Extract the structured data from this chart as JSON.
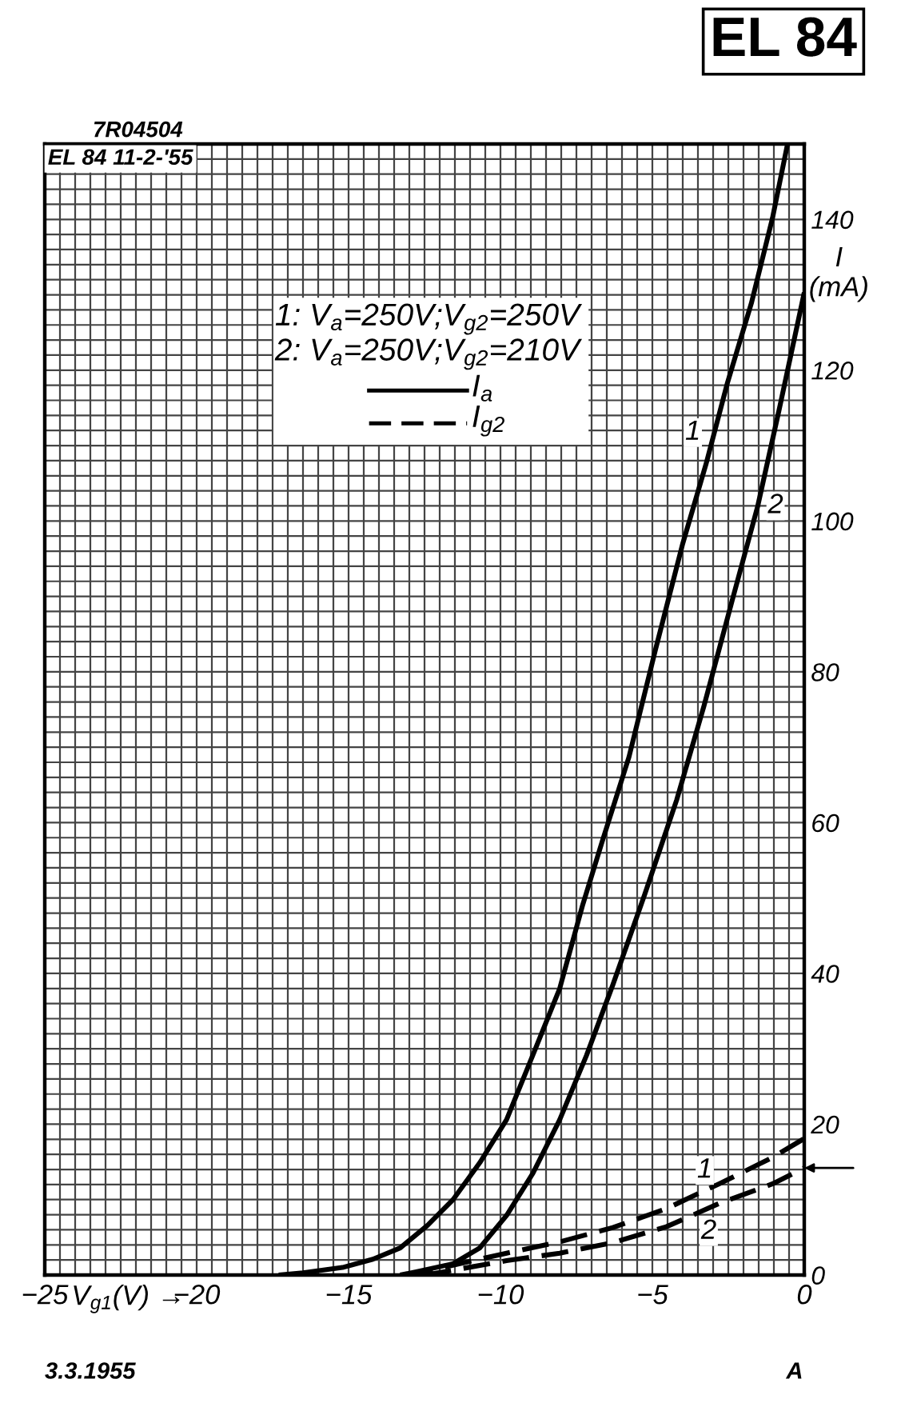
{
  "chart_data": {
    "type": "line",
    "title": "EL 84",
    "xlabel": "V$_{g1}$(V) →",
    "ylabel": "I\n(mA)",
    "annotations": [
      "7R04504",
      "EL 84 11-2-'55",
      "3.3.1955",
      "A",
      "1: V$_{a}$=250V;V$_{g2}$=250V",
      "2: V$_{a}$=250V;V$_{g2}$=210V",
      "I$_{a}$",
      "I$_{g2}$"
    ],
    "grid": true,
    "xlim": [
      -25,
      0
    ],
    "ylim": [
      0,
      150
    ],
    "xticks": [
      {
        "value": -25,
        "label": "−25"
      },
      {
        "value": -24.5,
        "label": null
      },
      {
        "value": -24,
        "label": null
      },
      {
        "value": -23.5,
        "label": null
      },
      {
        "value": -23,
        "label": null
      },
      {
        "value": -22.5,
        "label": null
      },
      {
        "value": -22,
        "label": null
      },
      {
        "value": -21.5,
        "label": null
      },
      {
        "value": -21,
        "label": null
      },
      {
        "value": -20.5,
        "label": null
      },
      {
        "value": -20,
        "label": "−20"
      },
      {
        "value": -19.5,
        "label": null
      },
      {
        "value": -19,
        "label": null
      },
      {
        "value": -18.5,
        "label": null
      },
      {
        "value": -18,
        "label": null
      },
      {
        "value": -17.5,
        "label": null
      },
      {
        "value": -17,
        "label": null
      },
      {
        "value": -16.5,
        "label": null
      },
      {
        "value": -16,
        "label": null
      },
      {
        "value": -15.5,
        "label": null
      },
      {
        "value": -15,
        "label": "−15"
      },
      {
        "value": -14.5,
        "label": null
      },
      {
        "value": -14,
        "label": null
      },
      {
        "value": -13.5,
        "label": null
      },
      {
        "value": -13,
        "label": null
      },
      {
        "value": -12.5,
        "label": null
      },
      {
        "value": -12,
        "label": null
      },
      {
        "value": -11.5,
        "label": null
      },
      {
        "value": -11,
        "label": null
      },
      {
        "value": -10.5,
        "label": null
      },
      {
        "value": -10,
        "label": "−10"
      },
      {
        "value": -9.5,
        "label": null
      },
      {
        "value": -9,
        "label": null
      },
      {
        "value": -8.5,
        "label": null
      },
      {
        "value": -8,
        "label": null
      },
      {
        "value": -7.5,
        "label": null
      },
      {
        "value": -7,
        "label": null
      },
      {
        "value": -6.5,
        "label": null
      },
      {
        "value": -6,
        "label": null
      },
      {
        "value": -5.5,
        "label": null
      },
      {
        "value": -5,
        "label": "−5"
      },
      {
        "value": -4.5,
        "label": null
      },
      {
        "value": -4,
        "label": null
      },
      {
        "value": -3.5,
        "label": null
      },
      {
        "value": -3,
        "label": null
      },
      {
        "value": -2.5,
        "label": null
      },
      {
        "value": -2,
        "label": null
      },
      {
        "value": -1.5,
        "label": null
      },
      {
        "value": -1,
        "label": null
      },
      {
        "value": -0.5,
        "label": null
      },
      0
    ],
    "yticks": [
      0,
      {
        "value": 2,
        "label": null
      },
      {
        "value": 4,
        "label": null
      },
      {
        "value": 6,
        "label": null
      },
      {
        "value": 8,
        "label": null
      },
      {
        "value": 10,
        "label": null
      },
      {
        "value": 12,
        "label": null
      },
      {
        "value": 14,
        "label": null
      },
      {
        "value": 16,
        "label": null
      },
      {
        "value": 18,
        "label": null
      },
      20,
      {
        "value": 22,
        "label": null
      },
      {
        "value": 24,
        "label": null
      },
      {
        "value": 26,
        "label": null
      },
      {
        "value": 28,
        "label": null
      },
      {
        "value": 30,
        "label": null
      },
      {
        "value": 32,
        "label": null
      },
      {
        "value": 34,
        "label": null
      },
      {
        "value": 36,
        "label": null
      },
      {
        "value": 38,
        "label": null
      },
      40,
      {
        "value": 42,
        "label": null
      },
      {
        "value": 44,
        "label": null
      },
      {
        "value": 46,
        "label": null
      },
      {
        "value": 48,
        "label": null
      },
      {
        "value": 50,
        "label": null
      },
      {
        "value": 52,
        "label": null
      },
      {
        "value": 54,
        "label": null
      },
      {
        "value": 56,
        "label": null
      },
      {
        "value": 58,
        "label": null
      },
      60,
      {
        "value": 62,
        "label": null
      },
      {
        "value": 64,
        "label": null
      },
      {
        "value": 66,
        "label": null
      },
      {
        "value": 68,
        "label": null
      },
      {
        "value": 70,
        "label": null
      },
      {
        "value": 72,
        "label": null
      },
      {
        "value": 74,
        "label": null
      },
      {
        "value": 76,
        "label": null
      },
      {
        "value": 78,
        "label": null
      },
      80,
      {
        "value": 82,
        "label": null
      },
      {
        "value": 84,
        "label": null
      },
      {
        "value": 86,
        "label": null
      },
      {
        "value": 88,
        "label": null
      },
      {
        "value": 90,
        "label": null
      },
      {
        "value": 92,
        "label": null
      },
      {
        "value": 94,
        "label": null
      },
      {
        "value": 96,
        "label": null
      },
      {
        "value": 98,
        "label": null
      },
      100,
      {
        "value": 102,
        "label": null
      },
      {
        "value": 104,
        "label": null
      },
      {
        "value": 106,
        "label": null
      },
      {
        "value": 108,
        "label": null
      },
      {
        "value": 110,
        "label": null
      },
      {
        "value": 112,
        "label": null
      },
      {
        "value": 114,
        "label": null
      },
      {
        "value": 116,
        "label": null
      },
      {
        "value": 118,
        "label": null
      },
      120,
      {
        "value": 122,
        "label": null
      },
      {
        "value": 124,
        "label": null
      },
      {
        "value": 126,
        "label": null
      },
      {
        "value": 128,
        "label": null
      },
      {
        "value": 130,
        "label": null
      },
      {
        "value": 132,
        "label": null
      },
      {
        "value": 134,
        "label": null
      },
      {
        "value": 136,
        "label": null
      },
      {
        "value": 138,
        "label": null
      },
      140,
      {
        "value": 142,
        "label": null
      },
      {
        "value": 144,
        "label": null
      },
      {
        "value": 146,
        "label": null
      },
      {
        "value": 148,
        "label": null
      },
      {
        "value": 150,
        "label": null
      }
    ],
    "series": [
      {
        "name": "1",
        "color": "#000000",
        "line_style": "solid",
        "x": [
          -17.3,
          -16.5,
          -15.2,
          -14.2,
          -13.3,
          -12.4,
          -11.56,
          -10.68,
          -9.8,
          -8.94,
          -8.05,
          -7.3,
          -6.65,
          -5.77,
          -4.9,
          -4.0,
          -3.23,
          -2.53,
          -1.74,
          -1.05,
          -0.55
        ],
        "values": [
          0,
          0.3,
          1.0,
          2.1,
          3.6,
          6.6,
          10.0,
          14.9,
          20.6,
          29.1,
          38.0,
          49.0,
          57.5,
          68.7,
          82.9,
          97.0,
          107.6,
          118.3,
          128.9,
          140.1,
          150
        ]
      },
      {
        "name": "2",
        "color": "#000000",
        "line_style": "solid",
        "x": [
          -13.3,
          -12.8,
          -11.56,
          -10.68,
          -9.8,
          -8.93,
          -8.05,
          -7.17,
          -6.3,
          -5.25,
          -4.2,
          -3.3,
          -2.37,
          -1.53,
          -0.83,
          0
        ],
        "values": [
          0,
          0.4,
          1.5,
          3.6,
          7.9,
          13.5,
          20.6,
          29.1,
          38.5,
          50.5,
          63.0,
          75.5,
          89.5,
          102.0,
          114.7,
          130.3
        ]
      },
      {
        "name": "1",
        "color": "#000000",
        "line_style": "dashed",
        "x": [
          -13.1,
          -11.9,
          -9.8,
          -8.05,
          -6.3,
          -4.54,
          -2.8,
          -1.04,
          0
        ],
        "values": [
          0,
          1.0,
          2.9,
          4.4,
          6.3,
          8.8,
          12.1,
          15.6,
          18.1
        ]
      },
      {
        "name": "2",
        "color": "#000000",
        "line_style": "dashed",
        "x": [
          -12.5,
          -11.9,
          -9.8,
          -8.05,
          -6.3,
          -4.54,
          -2.8,
          -1.04,
          0
        ],
        "values": [
          0,
          0.4,
          1.9,
          2.9,
          4.3,
          6.4,
          9.5,
          12.1,
          14.2
        ]
      }
    ]
  }
}
